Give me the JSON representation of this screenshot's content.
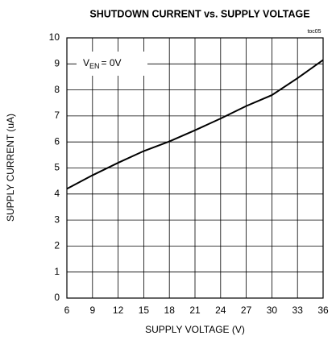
{
  "chart_data": {
    "type": "line",
    "title": "SHUTDOWN CURRENT vs. SUPPLY VOLTAGE",
    "code": "toc05",
    "annotation": {
      "main": "V",
      "sub": "EN",
      "rest": "= 0V"
    },
    "xlabel": "SUPPLY VOLTAGE (V)",
    "ylabel": "SUPPLY CURRENT (uA)",
    "x": [
      6,
      9,
      12,
      15,
      18,
      21,
      24,
      27,
      30,
      33,
      36
    ],
    "series": [
      {
        "color": "#000000",
        "values": [
          4.2,
          4.72,
          5.2,
          5.65,
          6.02,
          6.45,
          6.9,
          7.38,
          7.8,
          8.45,
          9.15
        ]
      }
    ],
    "xlim": [
      6,
      36
    ],
    "xticks": [
      6,
      9,
      12,
      15,
      18,
      21,
      24,
      27,
      30,
      33,
      36
    ],
    "ylim": [
      0,
      10
    ],
    "yticks": [
      0,
      1,
      2,
      3,
      4,
      5,
      6,
      7,
      8,
      9,
      10
    ],
    "grid": true
  }
}
